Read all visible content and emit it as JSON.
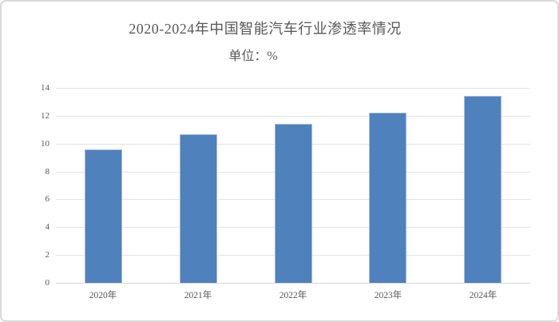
{
  "frame": {
    "background": "#ffffff",
    "border_color": "#d9d9d9"
  },
  "chart_data": {
    "type": "bar",
    "title": "2020-2024年中国智能汽车行业渗透率情况",
    "subtitle": "单位：%",
    "categories": [
      "2020年",
      "2021年",
      "2022年",
      "2023年",
      "2024年"
    ],
    "values": [
      9.6,
      10.7,
      11.4,
      12.2,
      13.4
    ],
    "series_name": "渗透率",
    "unit": "%",
    "xlabel": "",
    "ylabel": "",
    "ylim": [
      0,
      14
    ],
    "yticks": [
      0,
      2,
      4,
      6,
      8,
      10,
      12,
      14
    ],
    "grid": true,
    "legend": false,
    "bar_color": "#4f81bd",
    "gridline_color": "#e4e4e4",
    "axis_line_color": "#d6d6d6",
    "text_color": "#595959"
  }
}
